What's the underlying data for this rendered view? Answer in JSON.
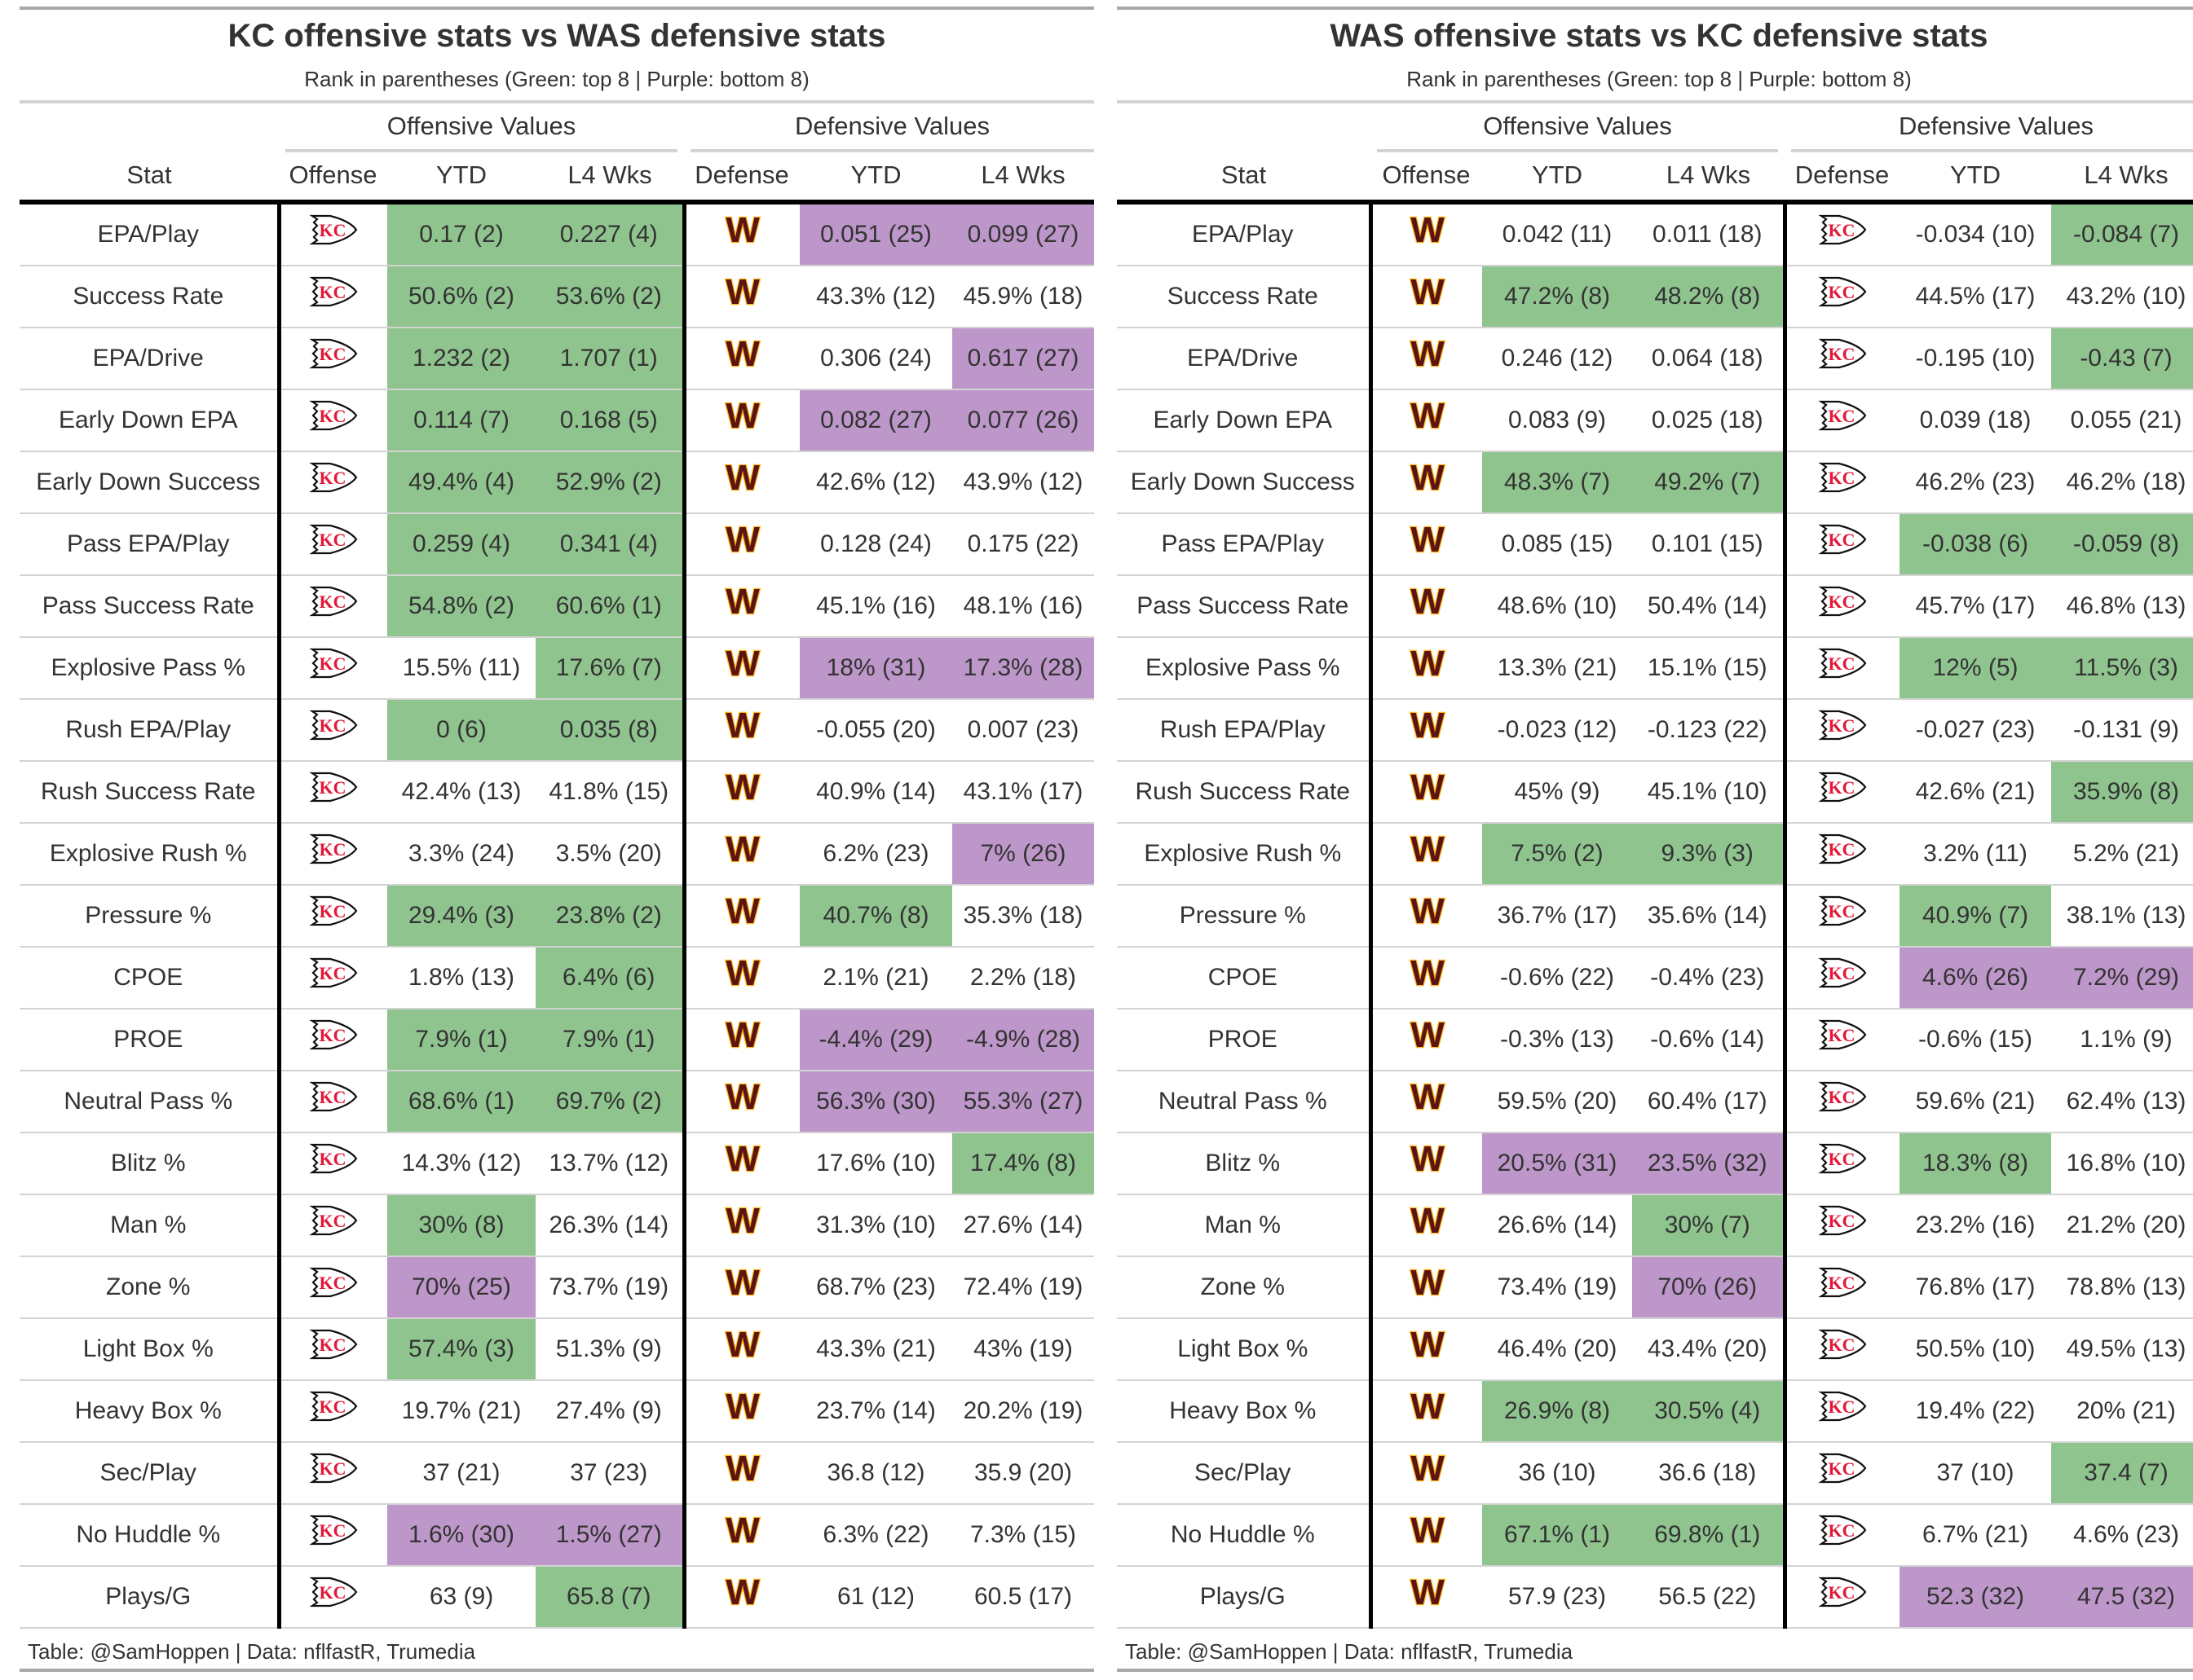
{
  "colors": {
    "top8": "#8fc48f",
    "bottom8": "#bd97c9",
    "rule": "#d3d3d3"
  },
  "tables": [
    {
      "title": "KC offensive stats vs WAS defensive stats",
      "subtitle": "Rank in parentheses (Green: top 8 | Purple: bottom 8)",
      "spanners": [
        "Offensive Values",
        "Defensive Values"
      ],
      "headers": [
        "Stat",
        "Offense",
        "YTD",
        "L4 Wks",
        "Defense",
        "YTD",
        "L4 Wks"
      ],
      "offense_logo": "kc-chiefs-logo-icon",
      "defense_logo": "was-commanders-logo-icon",
      "footer": "Table: @SamHoppen | Data: nflfastR, Trumedia",
      "rows": [
        {
          "stat": "EPA/Play",
          "cells": [
            [
              "0.17 (2)",
              "g"
            ],
            [
              "0.227 (4)",
              "g"
            ],
            [
              "0.051 (25)",
              "p"
            ],
            [
              "0.099 (27)",
              "p"
            ]
          ]
        },
        {
          "stat": "Success Rate",
          "cells": [
            [
              "50.6% (2)",
              "g"
            ],
            [
              "53.6% (2)",
              "g"
            ],
            [
              "43.3% (12)",
              ""
            ],
            [
              "45.9% (18)",
              ""
            ]
          ]
        },
        {
          "stat": "EPA/Drive",
          "cells": [
            [
              "1.232 (2)",
              "g"
            ],
            [
              "1.707 (1)",
              "g"
            ],
            [
              "0.306 (24)",
              ""
            ],
            [
              "0.617 (27)",
              "p"
            ]
          ]
        },
        {
          "stat": "Early Down EPA",
          "cells": [
            [
              "0.114 (7)",
              "g"
            ],
            [
              "0.168 (5)",
              "g"
            ],
            [
              "0.082 (27)",
              "p"
            ],
            [
              "0.077 (26)",
              "p"
            ]
          ]
        },
        {
          "stat": "Early Down Success",
          "cells": [
            [
              "49.4% (4)",
              "g"
            ],
            [
              "52.9% (2)",
              "g"
            ],
            [
              "42.6% (12)",
              ""
            ],
            [
              "43.9% (12)",
              ""
            ]
          ]
        },
        {
          "stat": "Pass EPA/Play",
          "cells": [
            [
              "0.259 (4)",
              "g"
            ],
            [
              "0.341 (4)",
              "g"
            ],
            [
              "0.128 (24)",
              ""
            ],
            [
              "0.175 (22)",
              ""
            ]
          ]
        },
        {
          "stat": "Pass Success Rate",
          "cells": [
            [
              "54.8% (2)",
              "g"
            ],
            [
              "60.6% (1)",
              "g"
            ],
            [
              "45.1% (16)",
              ""
            ],
            [
              "48.1% (16)",
              ""
            ]
          ]
        },
        {
          "stat": "Explosive Pass %",
          "cells": [
            [
              "15.5% (11)",
              ""
            ],
            [
              "17.6% (7)",
              "g"
            ],
            [
              "18% (31)",
              "p"
            ],
            [
              "17.3% (28)",
              "p"
            ]
          ]
        },
        {
          "stat": "Rush EPA/Play",
          "cells": [
            [
              "0 (6)",
              "g"
            ],
            [
              "0.035 (8)",
              "g"
            ],
            [
              "-0.055 (20)",
              ""
            ],
            [
              "0.007 (23)",
              ""
            ]
          ]
        },
        {
          "stat": "Rush Success Rate",
          "cells": [
            [
              "42.4% (13)",
              ""
            ],
            [
              "41.8% (15)",
              ""
            ],
            [
              "40.9% (14)",
              ""
            ],
            [
              "43.1% (17)",
              ""
            ]
          ]
        },
        {
          "stat": "Explosive Rush %",
          "cells": [
            [
              "3.3% (24)",
              ""
            ],
            [
              "3.5% (20)",
              ""
            ],
            [
              "6.2% (23)",
              ""
            ],
            [
              "7% (26)",
              "p"
            ]
          ]
        },
        {
          "stat": "Pressure %",
          "cells": [
            [
              "29.4% (3)",
              "g"
            ],
            [
              "23.8% (2)",
              "g"
            ],
            [
              "40.7% (8)",
              "g"
            ],
            [
              "35.3% (18)",
              ""
            ]
          ]
        },
        {
          "stat": "CPOE",
          "cells": [
            [
              "1.8% (13)",
              ""
            ],
            [
              "6.4% (6)",
              "g"
            ],
            [
              "2.1% (21)",
              ""
            ],
            [
              "2.2% (18)",
              ""
            ]
          ]
        },
        {
          "stat": "PROE",
          "cells": [
            [
              "7.9% (1)",
              "g"
            ],
            [
              "7.9% (1)",
              "g"
            ],
            [
              "-4.4% (29)",
              "p"
            ],
            [
              "-4.9% (28)",
              "p"
            ]
          ]
        },
        {
          "stat": "Neutral Pass %",
          "cells": [
            [
              "68.6% (1)",
              "g"
            ],
            [
              "69.7% (2)",
              "g"
            ],
            [
              "56.3% (30)",
              "p"
            ],
            [
              "55.3% (27)",
              "p"
            ]
          ]
        },
        {
          "stat": "Blitz %",
          "cells": [
            [
              "14.3% (12)",
              ""
            ],
            [
              "13.7% (12)",
              ""
            ],
            [
              "17.6% (10)",
              ""
            ],
            [
              "17.4% (8)",
              "g"
            ]
          ]
        },
        {
          "stat": "Man %",
          "cells": [
            [
              "30% (8)",
              "g"
            ],
            [
              "26.3% (14)",
              ""
            ],
            [
              "31.3% (10)",
              ""
            ],
            [
              "27.6% (14)",
              ""
            ]
          ]
        },
        {
          "stat": "Zone %",
          "cells": [
            [
              "70% (25)",
              "p"
            ],
            [
              "73.7% (19)",
              ""
            ],
            [
              "68.7% (23)",
              ""
            ],
            [
              "72.4% (19)",
              ""
            ]
          ]
        },
        {
          "stat": "Light Box %",
          "cells": [
            [
              "57.4% (3)",
              "g"
            ],
            [
              "51.3% (9)",
              ""
            ],
            [
              "43.3% (21)",
              ""
            ],
            [
              "43% (19)",
              ""
            ]
          ]
        },
        {
          "stat": "Heavy Box %",
          "cells": [
            [
              "19.7% (21)",
              ""
            ],
            [
              "27.4% (9)",
              ""
            ],
            [
              "23.7% (14)",
              ""
            ],
            [
              "20.2% (19)",
              ""
            ]
          ]
        },
        {
          "stat": "Sec/Play",
          "cells": [
            [
              "37 (21)",
              ""
            ],
            [
              "37 (23)",
              ""
            ],
            [
              "36.8 (12)",
              ""
            ],
            [
              "35.9 (20)",
              ""
            ]
          ]
        },
        {
          "stat": "No Huddle %",
          "cells": [
            [
              "1.6% (30)",
              "p"
            ],
            [
              "1.5% (27)",
              "p"
            ],
            [
              "6.3% (22)",
              ""
            ],
            [
              "7.3% (15)",
              ""
            ]
          ]
        },
        {
          "stat": "Plays/G",
          "cells": [
            [
              "63 (9)",
              ""
            ],
            [
              "65.8 (7)",
              "g"
            ],
            [
              "61 (12)",
              ""
            ],
            [
              "60.5 (17)",
              ""
            ]
          ]
        }
      ]
    },
    {
      "title": "WAS offensive stats vs KC defensive stats",
      "subtitle": "Rank in parentheses (Green: top 8 | Purple: bottom 8)",
      "spanners": [
        "Offensive Values",
        "Defensive Values"
      ],
      "headers": [
        "Stat",
        "Offense",
        "YTD",
        "L4 Wks",
        "Defense",
        "YTD",
        "L4 Wks"
      ],
      "offense_logo": "was-commanders-logo-icon",
      "defense_logo": "kc-chiefs-logo-icon",
      "footer": "Table: @SamHoppen | Data: nflfastR, Trumedia",
      "rows": [
        {
          "stat": "EPA/Play",
          "cells": [
            [
              "0.042 (11)",
              ""
            ],
            [
              "0.011 (18)",
              ""
            ],
            [
              "-0.034 (10)",
              ""
            ],
            [
              "-0.084 (7)",
              "g"
            ]
          ]
        },
        {
          "stat": "Success Rate",
          "cells": [
            [
              "47.2% (8)",
              "g"
            ],
            [
              "48.2% (8)",
              "g"
            ],
            [
              "44.5% (17)",
              ""
            ],
            [
              "43.2% (10)",
              ""
            ]
          ]
        },
        {
          "stat": "EPA/Drive",
          "cells": [
            [
              "0.246 (12)",
              ""
            ],
            [
              "0.064 (18)",
              ""
            ],
            [
              "-0.195 (10)",
              ""
            ],
            [
              "-0.43 (7)",
              "g"
            ]
          ]
        },
        {
          "stat": "Early Down EPA",
          "cells": [
            [
              "0.083 (9)",
              ""
            ],
            [
              "0.025 (18)",
              ""
            ],
            [
              "0.039 (18)",
              ""
            ],
            [
              "0.055 (21)",
              ""
            ]
          ]
        },
        {
          "stat": "Early Down Success",
          "cells": [
            [
              "48.3% (7)",
              "g"
            ],
            [
              "49.2% (7)",
              "g"
            ],
            [
              "46.2% (23)",
              ""
            ],
            [
              "46.2% (18)",
              ""
            ]
          ]
        },
        {
          "stat": "Pass EPA/Play",
          "cells": [
            [
              "0.085 (15)",
              ""
            ],
            [
              "0.101 (15)",
              ""
            ],
            [
              "-0.038 (6)",
              "g"
            ],
            [
              "-0.059 (8)",
              "g"
            ]
          ]
        },
        {
          "stat": "Pass Success Rate",
          "cells": [
            [
              "48.6% (10)",
              ""
            ],
            [
              "50.4% (14)",
              ""
            ],
            [
              "45.7% (17)",
              ""
            ],
            [
              "46.8% (13)",
              ""
            ]
          ]
        },
        {
          "stat": "Explosive Pass %",
          "cells": [
            [
              "13.3% (21)",
              ""
            ],
            [
              "15.1% (15)",
              ""
            ],
            [
              "12% (5)",
              "g"
            ],
            [
              "11.5% (3)",
              "g"
            ]
          ]
        },
        {
          "stat": "Rush EPA/Play",
          "cells": [
            [
              "-0.023 (12)",
              ""
            ],
            [
              "-0.123 (22)",
              ""
            ],
            [
              "-0.027 (23)",
              ""
            ],
            [
              "-0.131 (9)",
              ""
            ]
          ]
        },
        {
          "stat": "Rush Success Rate",
          "cells": [
            [
              "45% (9)",
              ""
            ],
            [
              "45.1% (10)",
              ""
            ],
            [
              "42.6% (21)",
              ""
            ],
            [
              "35.9% (8)",
              "g"
            ]
          ]
        },
        {
          "stat": "Explosive Rush %",
          "cells": [
            [
              "7.5% (2)",
              "g"
            ],
            [
              "9.3% (3)",
              "g"
            ],
            [
              "3.2% (11)",
              ""
            ],
            [
              "5.2% (21)",
              ""
            ]
          ]
        },
        {
          "stat": "Pressure %",
          "cells": [
            [
              "36.7% (17)",
              ""
            ],
            [
              "35.6% (14)",
              ""
            ],
            [
              "40.9% (7)",
              "g"
            ],
            [
              "38.1% (13)",
              ""
            ]
          ]
        },
        {
          "stat": "CPOE",
          "cells": [
            [
              "-0.6% (22)",
              ""
            ],
            [
              "-0.4% (23)",
              ""
            ],
            [
              "4.6% (26)",
              "p"
            ],
            [
              "7.2% (29)",
              "p"
            ]
          ]
        },
        {
          "stat": "PROE",
          "cells": [
            [
              "-0.3% (13)",
              ""
            ],
            [
              "-0.6% (14)",
              ""
            ],
            [
              "-0.6% (15)",
              ""
            ],
            [
              "1.1% (9)",
              ""
            ]
          ]
        },
        {
          "stat": "Neutral Pass %",
          "cells": [
            [
              "59.5% (20)",
              ""
            ],
            [
              "60.4% (17)",
              ""
            ],
            [
              "59.6% (21)",
              ""
            ],
            [
              "62.4% (13)",
              ""
            ]
          ]
        },
        {
          "stat": "Blitz %",
          "cells": [
            [
              "20.5% (31)",
              "p"
            ],
            [
              "23.5% (32)",
              "p"
            ],
            [
              "18.3% (8)",
              "g"
            ],
            [
              "16.8% (10)",
              ""
            ]
          ]
        },
        {
          "stat": "Man %",
          "cells": [
            [
              "26.6% (14)",
              ""
            ],
            [
              "30% (7)",
              "g"
            ],
            [
              "23.2% (16)",
              ""
            ],
            [
              "21.2% (20)",
              ""
            ]
          ]
        },
        {
          "stat": "Zone %",
          "cells": [
            [
              "73.4% (19)",
              ""
            ],
            [
              "70% (26)",
              "p"
            ],
            [
              "76.8% (17)",
              ""
            ],
            [
              "78.8% (13)",
              ""
            ]
          ]
        },
        {
          "stat": "Light Box %",
          "cells": [
            [
              "46.4% (20)",
              ""
            ],
            [
              "43.4% (20)",
              ""
            ],
            [
              "50.5% (10)",
              ""
            ],
            [
              "49.5% (13)",
              ""
            ]
          ]
        },
        {
          "stat": "Heavy Box %",
          "cells": [
            [
              "26.9% (8)",
              "g"
            ],
            [
              "30.5% (4)",
              "g"
            ],
            [
              "19.4% (22)",
              ""
            ],
            [
              "20% (21)",
              ""
            ]
          ]
        },
        {
          "stat": "Sec/Play",
          "cells": [
            [
              "36 (10)",
              ""
            ],
            [
              "36.6 (18)",
              ""
            ],
            [
              "37 (10)",
              ""
            ],
            [
              "37.4 (7)",
              "g"
            ]
          ]
        },
        {
          "stat": "No Huddle %",
          "cells": [
            [
              "67.1% (1)",
              "g"
            ],
            [
              "69.8% (1)",
              "g"
            ],
            [
              "6.7% (21)",
              ""
            ],
            [
              "4.6% (23)",
              ""
            ]
          ]
        },
        {
          "stat": "Plays/G",
          "cells": [
            [
              "57.9 (23)",
              ""
            ],
            [
              "56.5 (22)",
              ""
            ],
            [
              "52.3 (32)",
              "p"
            ],
            [
              "47.5 (32)",
              "p"
            ]
          ]
        }
      ]
    }
  ]
}
